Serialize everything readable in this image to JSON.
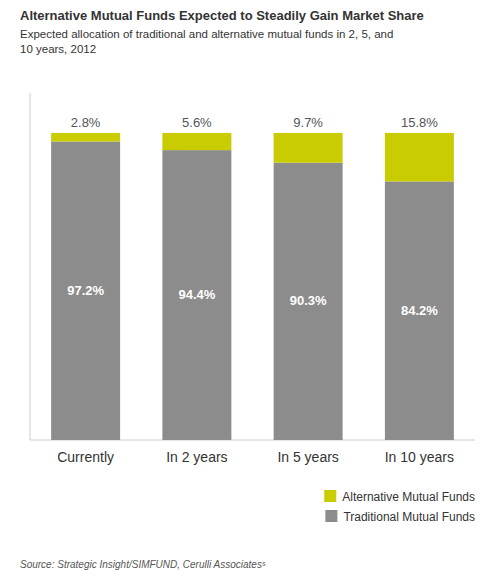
{
  "chart_data": {
    "type": "bar",
    "stacked": true,
    "title": "Alternative Mutual Funds Expected to Steadily Gain Market Share",
    "subtitle": [
      "Expected allocation of traditional and alternative mutual funds in 2, 5, and",
      "10 years, 2012"
    ],
    "annotations": [
      "Source: Strategic Insight/SIMFUND, Cerulli Associatesˢ"
    ],
    "categories": [
      "Currently",
      "In 2 years",
      "In 5 years",
      "In 10 years"
    ],
    "series": [
      {
        "name": "Traditional Mutual Funds",
        "color": "#8c8c8c",
        "values": [
          97.2,
          94.4,
          90.3,
          84.2
        ],
        "value_labels": [
          "97.2%",
          "94.4%",
          "90.3%",
          "84.2%"
        ]
      },
      {
        "name": "Alternative Mutual Funds",
        "color": "#c8cc00",
        "values": [
          2.8,
          5.6,
          9.7,
          15.8
        ],
        "value_labels": [
          "2.8%",
          "5.6%",
          "9.7%",
          "15.8%"
        ]
      }
    ],
    "ylim": [
      0,
      113
    ],
    "tick_labels": "x",
    "data_labels": true,
    "grid": false,
    "legend": "lower right"
  }
}
